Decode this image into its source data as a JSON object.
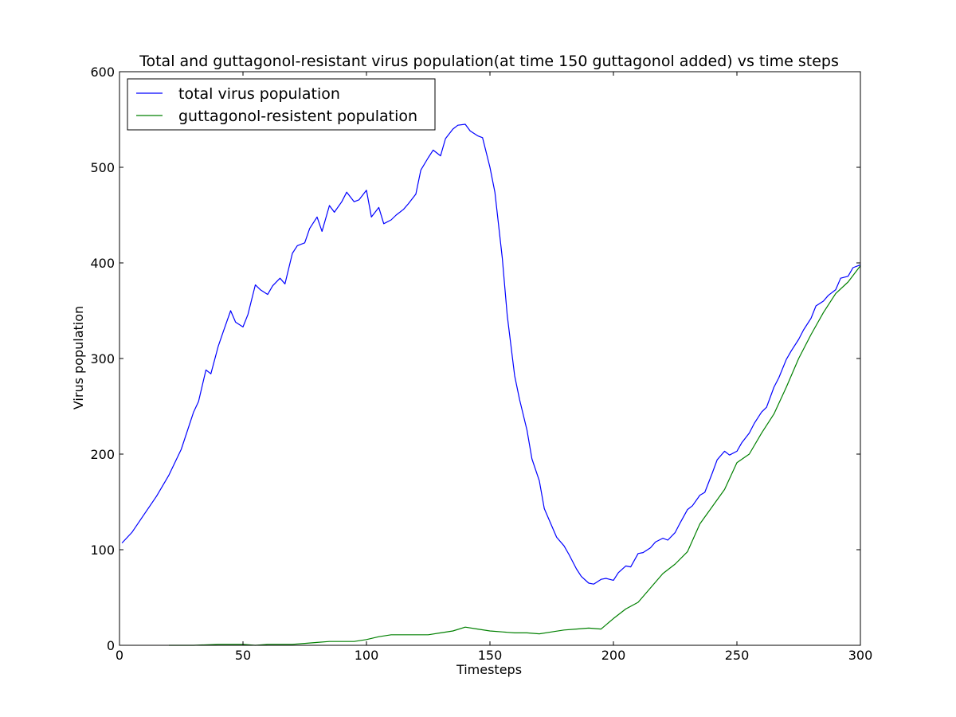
{
  "chart_data": {
    "type": "line",
    "title": "Total and guttagonol-resistant virus population(at time 150 guttagonol added) vs time steps",
    "xlabel": "Timesteps",
    "ylabel": "Virus population",
    "xlim": [
      0,
      300
    ],
    "ylim": [
      0,
      600
    ],
    "xticks": [
      0,
      50,
      100,
      150,
      200,
      250,
      300
    ],
    "yticks": [
      0,
      100,
      200,
      300,
      400,
      500,
      600
    ],
    "grid": false,
    "legend_position": "top-left",
    "series": [
      {
        "name": "total virus population",
        "color": "#0000ff",
        "x": [
          1,
          5,
          10,
          15,
          20,
          25,
          30,
          32,
          35,
          37,
          40,
          42,
          45,
          47,
          50,
          52,
          55,
          57,
          60,
          62,
          65,
          67,
          70,
          72,
          75,
          77,
          80,
          82,
          85,
          87,
          90,
          92,
          95,
          97,
          100,
          102,
          105,
          107,
          110,
          112,
          115,
          117,
          120,
          122,
          125,
          127,
          130,
          132,
          135,
          137,
          140,
          142,
          145,
          147,
          150,
          152,
          155,
          157,
          160,
          162,
          165,
          167,
          170,
          172,
          175,
          177,
          180,
          182,
          185,
          187,
          190,
          192,
          195,
          197,
          200,
          202,
          205,
          207,
          210,
          212,
          215,
          217,
          220,
          222,
          225,
          227,
          230,
          232,
          235,
          237,
          240,
          242,
          245,
          247,
          250,
          252,
          255,
          257,
          260,
          262,
          265,
          267,
          270,
          272,
          275,
          277,
          280,
          282,
          285,
          287,
          290,
          292,
          295,
          297,
          300
        ],
        "values": [
          107,
          118,
          137,
          156,
          178,
          205,
          244,
          255,
          288,
          284,
          313,
          328,
          350,
          338,
          333,
          346,
          377,
          372,
          367,
          376,
          384,
          378,
          410,
          418,
          421,
          436,
          448,
          433,
          460,
          453,
          464,
          474,
          464,
          466,
          476,
          448,
          458,
          441,
          445,
          450,
          456,
          462,
          472,
          497,
          510,
          518,
          512,
          530,
          540,
          544,
          545,
          538,
          533,
          531,
          500,
          474,
          405,
          345,
          282,
          257,
          225,
          195,
          172,
          143,
          125,
          113,
          104,
          95,
          80,
          72,
          65,
          64,
          69,
          70,
          68,
          76,
          83,
          82,
          96,
          97,
          102,
          108,
          112,
          110,
          118,
          128,
          142,
          146,
          157,
          160,
          180,
          194,
          203,
          199,
          203,
          212,
          222,
          232,
          244,
          249,
          270,
          280,
          299,
          308,
          320,
          330,
          342,
          355,
          360,
          366,
          372,
          384,
          386,
          395,
          398
        ]
      },
      {
        "name": "guttagonol-resistent population",
        "color": "#008000",
        "x": [
          20,
          30,
          40,
          50,
          55,
          60,
          65,
          70,
          75,
          80,
          85,
          90,
          95,
          100,
          105,
          110,
          115,
          120,
          125,
          130,
          135,
          140,
          145,
          150,
          155,
          160,
          165,
          170,
          175,
          180,
          185,
          190,
          195,
          200,
          205,
          210,
          215,
          220,
          225,
          230,
          235,
          240,
          245,
          250,
          255,
          260,
          265,
          270,
          275,
          280,
          285,
          290,
          295,
          300
        ],
        "values": [
          0,
          0,
          1,
          1,
          0,
          1,
          1,
          1,
          2,
          3,
          4,
          4,
          4,
          6,
          9,
          11,
          11,
          11,
          11,
          13,
          15,
          19,
          17,
          15,
          14,
          13,
          13,
          12,
          14,
          16,
          17,
          18,
          17,
          28,
          38,
          45,
          60,
          75,
          85,
          98,
          127,
          145,
          163,
          191,
          200,
          222,
          242,
          270,
          300,
          325,
          348,
          368,
          380,
          397
        ]
      }
    ]
  }
}
